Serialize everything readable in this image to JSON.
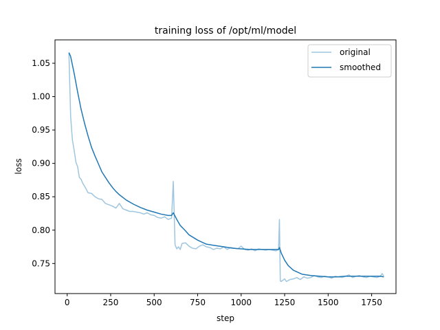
{
  "chart_data": {
    "type": "line",
    "title": "training loss of /opt/ml/model",
    "xlabel": "step",
    "ylabel": "loss",
    "xlim": [
      -70,
      1890
    ],
    "ylim": [
      0.705,
      1.085
    ],
    "x_ticks": [
      0,
      250,
      500,
      750,
      1000,
      1250,
      1500,
      1750
    ],
    "y_ticks": [
      0.75,
      0.8,
      0.85,
      0.9,
      0.95,
      1.0,
      1.05
    ],
    "x_tick_labels": [
      "0",
      "250",
      "500",
      "750",
      "1000",
      "1250",
      "1500",
      "1750"
    ],
    "y_tick_labels": [
      "0.75",
      "0.80",
      "0.85",
      "0.90",
      "0.95",
      "1.00",
      "1.05"
    ],
    "grid": false,
    "legend_position": "top-right",
    "series": [
      {
        "name": "original",
        "color": "#9ec5e0",
        "x": [
          10,
          20,
          30,
          40,
          50,
          60,
          70,
          80,
          90,
          100,
          120,
          140,
          160,
          180,
          200,
          220,
          240,
          260,
          280,
          300,
          320,
          340,
          360,
          380,
          400,
          420,
          440,
          460,
          480,
          500,
          520,
          540,
          560,
          580,
          600,
          610,
          620,
          630,
          640,
          650,
          660,
          680,
          700,
          720,
          740,
          760,
          780,
          800,
          820,
          840,
          860,
          880,
          900,
          920,
          940,
          960,
          980,
          1000,
          1020,
          1040,
          1060,
          1080,
          1100,
          1120,
          1140,
          1160,
          1180,
          1200,
          1215,
          1220,
          1225,
          1230,
          1240,
          1250,
          1260,
          1280,
          1300,
          1320,
          1340,
          1360,
          1380,
          1400,
          1420,
          1440,
          1460,
          1480,
          1500,
          1520,
          1540,
          1560,
          1580,
          1600,
          1620,
          1640,
          1660,
          1680,
          1700,
          1720,
          1740,
          1760,
          1780,
          1800,
          1810,
          1820
        ],
        "values": [
          1.065,
          0.97,
          0.935,
          0.92,
          0.902,
          0.895,
          0.879,
          0.876,
          0.87,
          0.866,
          0.856,
          0.855,
          0.85,
          0.847,
          0.846,
          0.84,
          0.838,
          0.836,
          0.833,
          0.84,
          0.832,
          0.83,
          0.828,
          0.828,
          0.827,
          0.826,
          0.824,
          0.826,
          0.823,
          0.822,
          0.819,
          0.818,
          0.82,
          0.816,
          0.818,
          0.873,
          0.778,
          0.772,
          0.775,
          0.771,
          0.78,
          0.781,
          0.776,
          0.773,
          0.772,
          0.776,
          0.778,
          0.775,
          0.774,
          0.771,
          0.773,
          0.772,
          0.775,
          0.771,
          0.774,
          0.773,
          0.772,
          0.776,
          0.771,
          0.77,
          0.772,
          0.769,
          0.772,
          0.771,
          0.77,
          0.771,
          0.77,
          0.769,
          0.771,
          0.816,
          0.724,
          0.723,
          0.725,
          0.727,
          0.723,
          0.726,
          0.727,
          0.729,
          0.726,
          0.73,
          0.728,
          0.729,
          0.732,
          0.73,
          0.729,
          0.731,
          0.73,
          0.728,
          0.731,
          0.73,
          0.729,
          0.731,
          0.733,
          0.729,
          0.731,
          0.732,
          0.73,
          0.729,
          0.731,
          0.73,
          0.729,
          0.731,
          0.735,
          0.731
        ]
      },
      {
        "name": "smoothed",
        "color": "#1f77b4",
        "x": [
          10,
          20,
          40,
          60,
          80,
          100,
          120,
          140,
          160,
          180,
          200,
          220,
          240,
          260,
          280,
          300,
          340,
          380,
          420,
          460,
          500,
          540,
          580,
          600,
          610,
          630,
          650,
          680,
          700,
          750,
          800,
          850,
          900,
          950,
          1000,
          1050,
          1100,
          1150,
          1200,
          1215,
          1220,
          1230,
          1250,
          1270,
          1300,
          1350,
          1400,
          1450,
          1500,
          1550,
          1600,
          1650,
          1700,
          1750,
          1800,
          1820
        ],
        "values": [
          1.066,
          1.06,
          1.035,
          1.007,
          0.981,
          0.96,
          0.941,
          0.924,
          0.911,
          0.899,
          0.887,
          0.879,
          0.871,
          0.864,
          0.858,
          0.853,
          0.845,
          0.839,
          0.834,
          0.83,
          0.827,
          0.824,
          0.822,
          0.822,
          0.826,
          0.816,
          0.807,
          0.799,
          0.793,
          0.785,
          0.779,
          0.777,
          0.775,
          0.773,
          0.772,
          0.771,
          0.771,
          0.771,
          0.771,
          0.771,
          0.774,
          0.766,
          0.755,
          0.747,
          0.74,
          0.734,
          0.732,
          0.731,
          0.73,
          0.73,
          0.731,
          0.731,
          0.731,
          0.731,
          0.731,
          0.73
        ]
      }
    ]
  }
}
